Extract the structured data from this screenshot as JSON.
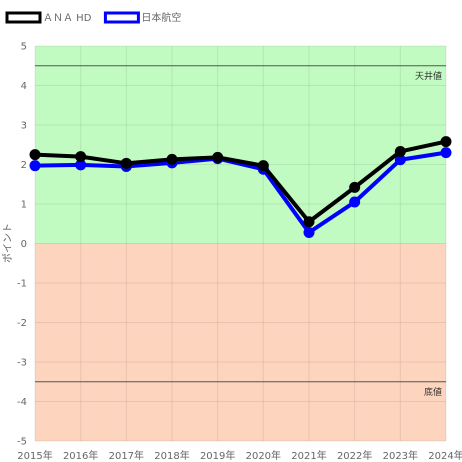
{
  "chart_data": {
    "type": "line",
    "categories": [
      "2015年",
      "2016年",
      "2017年",
      "2018年",
      "2019年",
      "2020年",
      "2021年",
      "2022年",
      "2023年",
      "2024年"
    ],
    "series": [
      {
        "name": "ＡＮＡ HD",
        "color": "#000000",
        "values": [
          2.25,
          2.2,
          2.03,
          2.13,
          2.18,
          1.97,
          0.55,
          1.42,
          2.33,
          2.58
        ]
      },
      {
        "name": "日本航空",
        "color": "#0000ff",
        "values": [
          1.97,
          1.99,
          1.95,
          2.04,
          2.15,
          1.88,
          0.28,
          1.05,
          2.12,
          2.3
        ]
      }
    ],
    "ylim": [
      -5,
      5
    ],
    "yticks": [
      "5",
      "4",
      "3",
      "2",
      "1",
      "0",
      "-1",
      "-2",
      "-3",
      "-4",
      "-5"
    ],
    "ylabel": "ポイント",
    "xlabel": "",
    "title": "",
    "grid": true,
    "legend": "top-left",
    "bands": [
      {
        "from": 0,
        "to": 5,
        "color": "#c1fbc1"
      },
      {
        "from": -5,
        "to": 0,
        "color": "#fdd4bd"
      }
    ],
    "reference_lines": [
      {
        "value": 4.5,
        "label": "天井値"
      },
      {
        "value": -3.5,
        "label": "底値"
      }
    ]
  }
}
